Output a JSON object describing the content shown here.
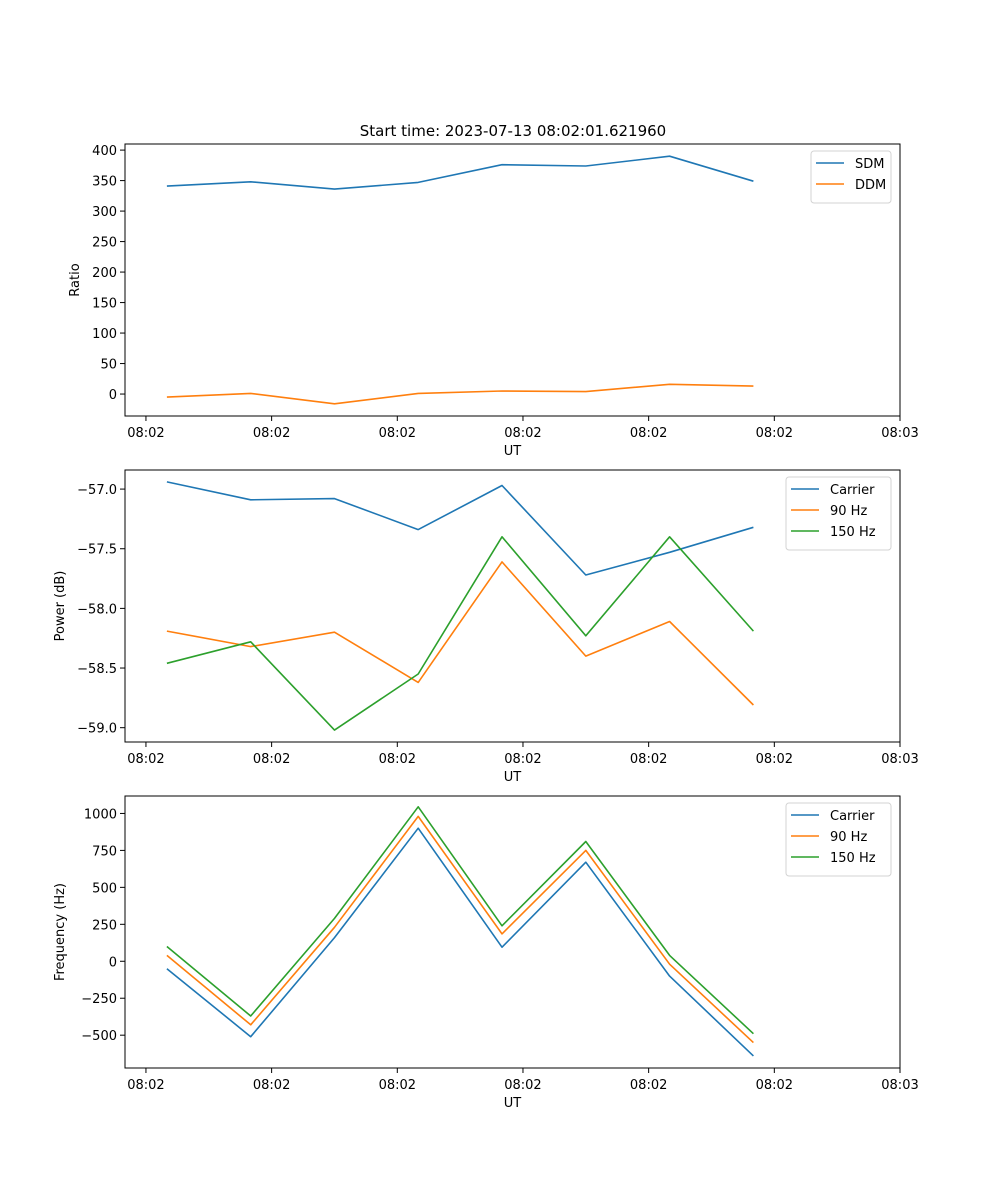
{
  "figure_title": "Start time: 2023-07-13 08:02:01.621960",
  "chart_data": [
    {
      "type": "line",
      "title": "Start time: 2023-07-13 08:02:01.621960",
      "xlabel": "UT",
      "ylabel": "Ratio",
      "x_index": [
        0,
        1,
        2,
        3,
        4,
        5,
        6,
        7
      ],
      "xlim": [
        -0.5,
        8.75
      ],
      "xticks": [
        -0.25,
        1.25,
        2.75,
        4.25,
        5.75,
        7.25,
        8.75
      ],
      "xtick_labels": [
        "08:02",
        "08:02",
        "08:02",
        "08:02",
        "08:02",
        "08:02",
        "08:03"
      ],
      "ylim": [
        -36,
        410
      ],
      "yticks": [
        0,
        50,
        100,
        150,
        200,
        250,
        300,
        350,
        400
      ],
      "ytick_labels": [
        "0",
        "50",
        "100",
        "150",
        "200",
        "250",
        "300",
        "350",
        "400"
      ],
      "grid": false,
      "legend_position": "top-right",
      "series": [
        {
          "name": "SDM",
          "color": "#1f77b4",
          "values": [
            341,
            348,
            336,
            347,
            376,
            374,
            390,
            349
          ]
        },
        {
          "name": "DDM",
          "color": "#ff7f0e",
          "values": [
            -5,
            1,
            -16,
            1,
            5,
            4,
            16,
            13
          ]
        }
      ]
    },
    {
      "type": "line",
      "title": "",
      "xlabel": "UT",
      "ylabel": "Power (dB)",
      "x_index": [
        0,
        1,
        2,
        3,
        4,
        5,
        6,
        7
      ],
      "xlim": [
        -0.5,
        8.75
      ],
      "xticks": [
        -0.25,
        1.25,
        2.75,
        4.25,
        5.75,
        7.25,
        8.75
      ],
      "xtick_labels": [
        "08:02",
        "08:02",
        "08:02",
        "08:02",
        "08:02",
        "08:02",
        "08:03"
      ],
      "ylim": [
        -59.12,
        -56.84
      ],
      "yticks": [
        -57.0,
        -57.5,
        -58.0,
        -58.5,
        -59.0
      ],
      "ytick_labels": [
        "−57.0",
        "−57.5",
        "−58.0",
        "−58.5",
        "−59.0"
      ],
      "grid": false,
      "legend_position": "top-right",
      "series": [
        {
          "name": "Carrier",
          "color": "#1f77b4",
          "values": [
            -56.94,
            -57.09,
            -57.08,
            -57.34,
            -56.97,
            -57.72,
            -57.53,
            -57.32
          ]
        },
        {
          "name": "90 Hz",
          "color": "#ff7f0e",
          "values": [
            -58.19,
            -58.32,
            -58.2,
            -58.62,
            -57.61,
            -58.4,
            -58.11,
            -58.81
          ]
        },
        {
          "name": "150 Hz",
          "color": "#2ca02c",
          "values": [
            -58.46,
            -58.28,
            -59.02,
            -58.55,
            -57.4,
            -58.23,
            -57.4,
            -58.19
          ]
        }
      ]
    },
    {
      "type": "line",
      "title": "",
      "xlabel": "UT",
      "ylabel": "Frequency (Hz)",
      "x_index": [
        0,
        1,
        2,
        3,
        4,
        5,
        6,
        7
      ],
      "xlim": [
        -0.5,
        8.75
      ],
      "xticks": [
        -0.25,
        1.25,
        2.75,
        4.25,
        5.75,
        7.25,
        8.75
      ],
      "xtick_labels": [
        "08:02",
        "08:02",
        "08:02",
        "08:02",
        "08:02",
        "08:02",
        "08:03"
      ],
      "ylim": [
        -722,
        1118
      ],
      "yticks": [
        1000,
        750,
        500,
        250,
        0,
        -250,
        -500
      ],
      "ytick_labels": [
        "1000",
        "750",
        "500",
        "250",
        "0",
        "−250",
        "−500"
      ],
      "grid": false,
      "legend_position": "top-right",
      "series": [
        {
          "name": "Carrier",
          "color": "#1f77b4",
          "values": [
            -50,
            -510,
            160,
            900,
            95,
            670,
            -100,
            -640
          ]
        },
        {
          "name": "90 Hz",
          "color": "#ff7f0e",
          "values": [
            40,
            -430,
            230,
            980,
            185,
            750,
            -20,
            -550
          ]
        },
        {
          "name": "150 Hz",
          "color": "#2ca02c",
          "values": [
            100,
            -370,
            290,
            1045,
            240,
            810,
            40,
            -490
          ]
        }
      ]
    }
  ]
}
